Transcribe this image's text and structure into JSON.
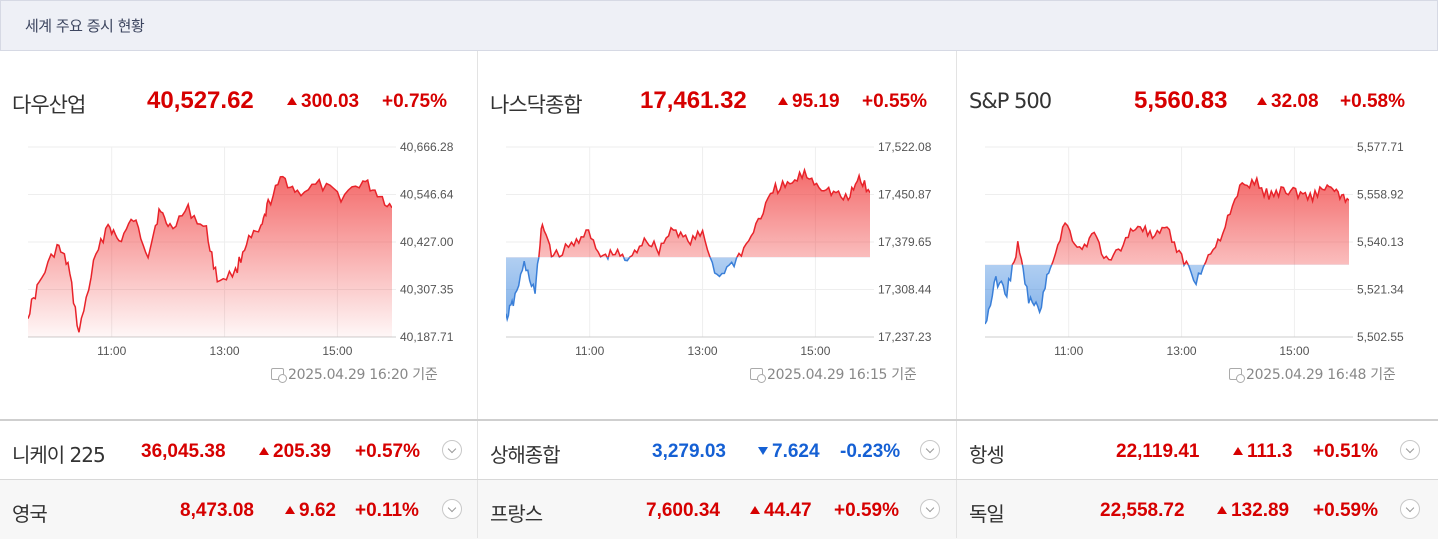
{
  "header": {
    "title": "세계 주요 증시 현황"
  },
  "panels": [
    {
      "name": "다우산업",
      "value": "40,527.62",
      "change": "300.03",
      "pct": "+0.75%",
      "y_labels": [
        "40,666.28",
        "40,546.64",
        "40,427.00",
        "40,307.35",
        "40,187.71"
      ],
      "x_labels": [
        "11:00",
        "13:00",
        "15:00"
      ],
      "timestamp": "2025.04.29 16:20 기준",
      "color": "#e8232a"
    },
    {
      "name": "나스닥종합",
      "value": "17,461.32",
      "change": "95.19",
      "pct": "+0.55%",
      "y_labels": [
        "17,522.08",
        "17,450.87",
        "17,379.65",
        "17,308.44",
        "17,237.23"
      ],
      "x_labels": [
        "11:00",
        "13:00",
        "15:00"
      ],
      "timestamp": "2025.04.29 16:15 기준",
      "color": "#e8232a"
    },
    {
      "name": "S&P 500",
      "value": "5,560.83",
      "change": "32.08",
      "pct": "+0.58%",
      "y_labels": [
        "5,577.71",
        "5,558.92",
        "5,540.13",
        "5,521.34",
        "5,502.55"
      ],
      "x_labels": [
        "11:00",
        "13:00",
        "15:00"
      ],
      "timestamp": "2025.04.29 16:48 기준",
      "color": "#e8232a"
    }
  ],
  "rows": [
    [
      {
        "name": "니케이 225",
        "value": "36,045.38",
        "change": "205.39",
        "pct": "+0.57%",
        "dir": "up"
      },
      {
        "name": "상해종합",
        "value": "3,279.03",
        "change": "7.624",
        "pct": "-0.23%",
        "dir": "down"
      },
      {
        "name": "항셍",
        "value": "22,119.41",
        "change": "111.3",
        "pct": "+0.51%",
        "dir": "up"
      }
    ],
    [
      {
        "name": "영국",
        "value": "8,473.08",
        "change": "9.62",
        "pct": "+0.11%",
        "dir": "up"
      },
      {
        "name": "프랑스",
        "value": "7,600.34",
        "change": "44.47",
        "pct": "+0.59%",
        "dir": "up"
      },
      {
        "name": "독일",
        "value": "22,558.72",
        "change": "132.89",
        "pct": "+0.59%",
        "dir": "up"
      }
    ]
  ],
  "colors": {
    "up": "#d60000",
    "down": "#1560d4",
    "chart_up": "#e8232a",
    "chart_down": "#3a7fd8"
  }
}
